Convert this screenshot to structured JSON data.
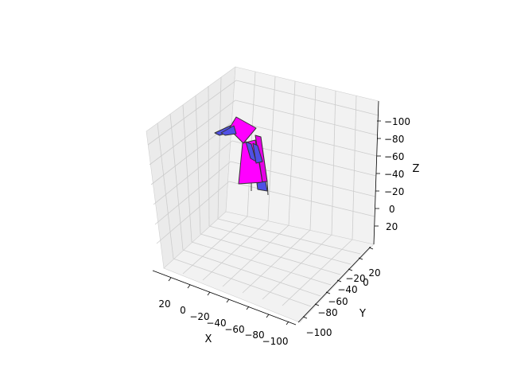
{
  "chart_data": {
    "type": "3d-polygons",
    "xlabel": "X",
    "ylabel": "Y",
    "zlabel": "Z",
    "xlim": [
      30,
      -110
    ],
    "ylim": [
      -110,
      30
    ],
    "zlim": [
      30,
      -110
    ],
    "x_ticks": [
      "20",
      "0",
      "−20",
      "−40",
      "−60",
      "−80",
      "−100"
    ],
    "y_ticks": [
      "−100",
      "−80",
      "−60",
      "−40",
      "−20",
      "0",
      "20"
    ],
    "z_ticks": [
      "−100",
      "−80",
      "−60",
      "−40",
      "−20",
      "0",
      "20"
    ],
    "grid": true,
    "colors": {
      "surface": "#ff00ff",
      "accent": "#5050e6",
      "edge": "#333333",
      "pane_left": "#ebebeb",
      "pane_right": "#f2f2f2",
      "pane_floor": "#f2f2f2",
      "grid": "#cccccc"
    }
  }
}
